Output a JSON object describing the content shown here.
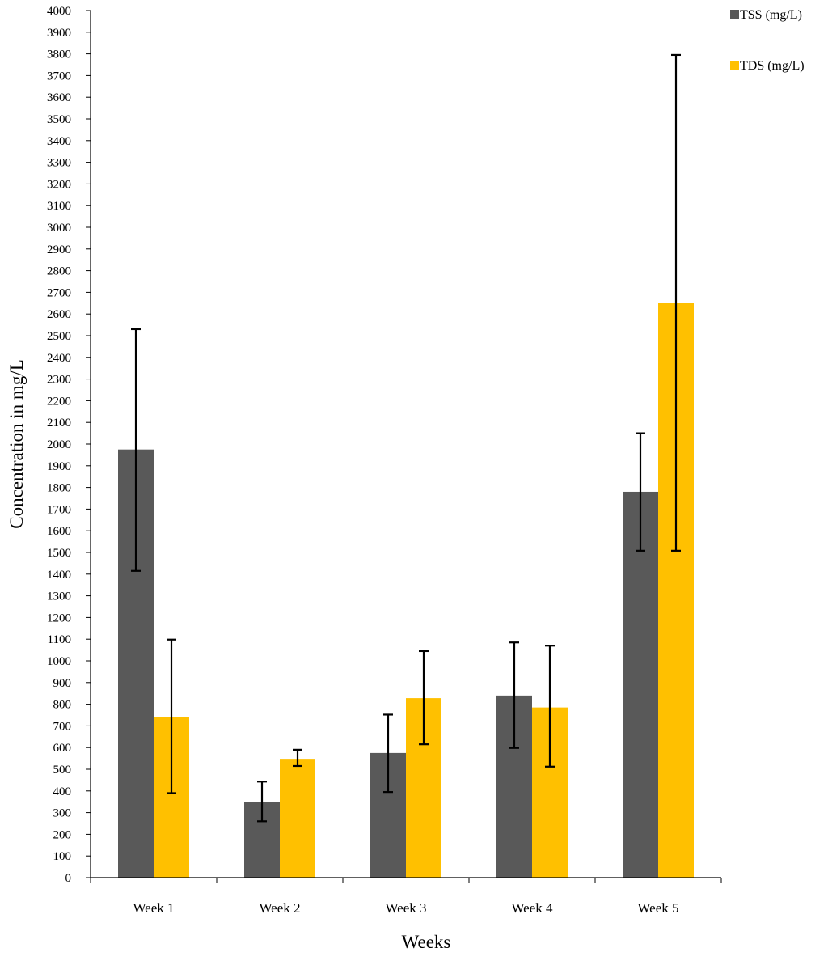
{
  "chart_data": {
    "type": "bar",
    "categories": [
      "Week 1",
      "Week 2",
      "Week 3",
      "Week 4",
      "Week 5"
    ],
    "series": [
      {
        "name": "TSS (mg/L)",
        "color": "#595959",
        "values": [
          1975,
          350,
          575,
          840,
          1780
        ],
        "error_low": [
          1415,
          260,
          395,
          598,
          1508
        ],
        "error_high": [
          2530,
          443,
          752,
          1085,
          2050
        ]
      },
      {
        "name": "TDS (mg/L)",
        "color": "#FFC000",
        "values": [
          740,
          548,
          828,
          785,
          2650
        ],
        "error_low": [
          390,
          515,
          615,
          512,
          1508
        ],
        "error_high": [
          1098,
          590,
          1045,
          1070,
          3795
        ]
      }
    ],
    "xlabel": "Weeks",
    "ylabel": "Concentration in mg/L",
    "ylim": [
      0,
      4000
    ],
    "ytick_step": 100,
    "grid": false,
    "legend_position": "top-right"
  }
}
